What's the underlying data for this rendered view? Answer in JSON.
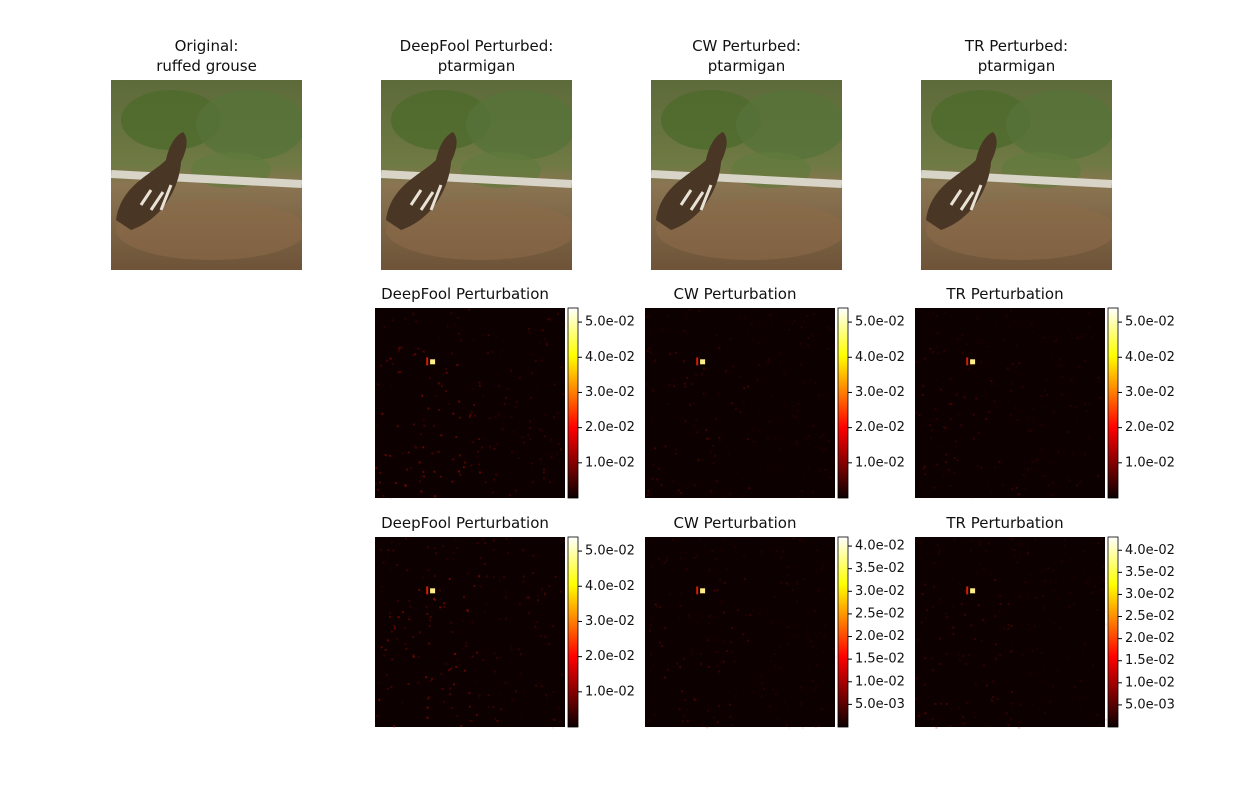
{
  "images": [
    {
      "title": [
        "Original:",
        "ruffed grouse"
      ]
    },
    {
      "title": [
        "DeepFool Perturbed:",
        "ptarmigan"
      ]
    },
    {
      "title": [
        "CW Perturbed:",
        "ptarmigan"
      ]
    },
    {
      "title": [
        "TR Perturbed:",
        "ptarmigan"
      ]
    }
  ],
  "chart_data": [
    {
      "type": "heatmap",
      "title": "DeepFool Perturbation",
      "colormap": "hot",
      "zlim": [
        0,
        0.054
      ],
      "zticks": [
        {
          "value": 0.01,
          "label": "1.0e-02"
        },
        {
          "value": 0.02,
          "label": "2.0e-02"
        },
        {
          "value": 0.03,
          "label": "3.0e-02"
        },
        {
          "value": 0.04,
          "label": "4.0e-02"
        },
        {
          "value": 0.05,
          "label": "5.0e-02"
        }
      ]
    },
    {
      "type": "heatmap",
      "title": "CW Perturbation",
      "colormap": "hot",
      "zlim": [
        0,
        0.054
      ],
      "zticks": [
        {
          "value": 0.01,
          "label": "1.0e-02"
        },
        {
          "value": 0.02,
          "label": "2.0e-02"
        },
        {
          "value": 0.03,
          "label": "3.0e-02"
        },
        {
          "value": 0.04,
          "label": "4.0e-02"
        },
        {
          "value": 0.05,
          "label": "5.0e-02"
        }
      ]
    },
    {
      "type": "heatmap",
      "title": "TR Perturbation",
      "colormap": "hot",
      "zlim": [
        0,
        0.054
      ],
      "zticks": [
        {
          "value": 0.01,
          "label": "1.0e-02"
        },
        {
          "value": 0.02,
          "label": "2.0e-02"
        },
        {
          "value": 0.03,
          "label": "3.0e-02"
        },
        {
          "value": 0.04,
          "label": "4.0e-02"
        },
        {
          "value": 0.05,
          "label": "5.0e-02"
        }
      ]
    },
    {
      "type": "heatmap",
      "title": "DeepFool Perturbation",
      "colormap": "hot",
      "zlim": [
        0,
        0.054
      ],
      "zticks": [
        {
          "value": 0.01,
          "label": "1.0e-02"
        },
        {
          "value": 0.02,
          "label": "2.0e-02"
        },
        {
          "value": 0.03,
          "label": "3.0e-02"
        },
        {
          "value": 0.04,
          "label": "4.0e-02"
        },
        {
          "value": 0.05,
          "label": "5.0e-02"
        }
      ]
    },
    {
      "type": "heatmap",
      "title": "CW Perturbation",
      "colormap": "hot",
      "zlim": [
        0,
        0.042
      ],
      "zticks": [
        {
          "value": 0.005,
          "label": "5.0e-03"
        },
        {
          "value": 0.01,
          "label": "1.0e-02"
        },
        {
          "value": 0.015,
          "label": "1.5e-02"
        },
        {
          "value": 0.02,
          "label": "2.0e-02"
        },
        {
          "value": 0.025,
          "label": "2.5e-02"
        },
        {
          "value": 0.03,
          "label": "3.0e-02"
        },
        {
          "value": 0.035,
          "label": "3.5e-02"
        },
        {
          "value": 0.04,
          "label": "4.0e-02"
        }
      ]
    },
    {
      "type": "heatmap",
      "title": "TR Perturbation",
      "colormap": "hot",
      "zlim": [
        0,
        0.043
      ],
      "zticks": [
        {
          "value": 0.005,
          "label": "5.0e-03"
        },
        {
          "value": 0.01,
          "label": "1.0e-02"
        },
        {
          "value": 0.015,
          "label": "1.5e-02"
        },
        {
          "value": 0.02,
          "label": "2.0e-02"
        },
        {
          "value": 0.025,
          "label": "2.5e-02"
        },
        {
          "value": 0.03,
          "label": "3.0e-02"
        },
        {
          "value": 0.035,
          "label": "3.5e-02"
        },
        {
          "value": 0.04,
          "label": "4.0e-02"
        }
      ]
    }
  ]
}
